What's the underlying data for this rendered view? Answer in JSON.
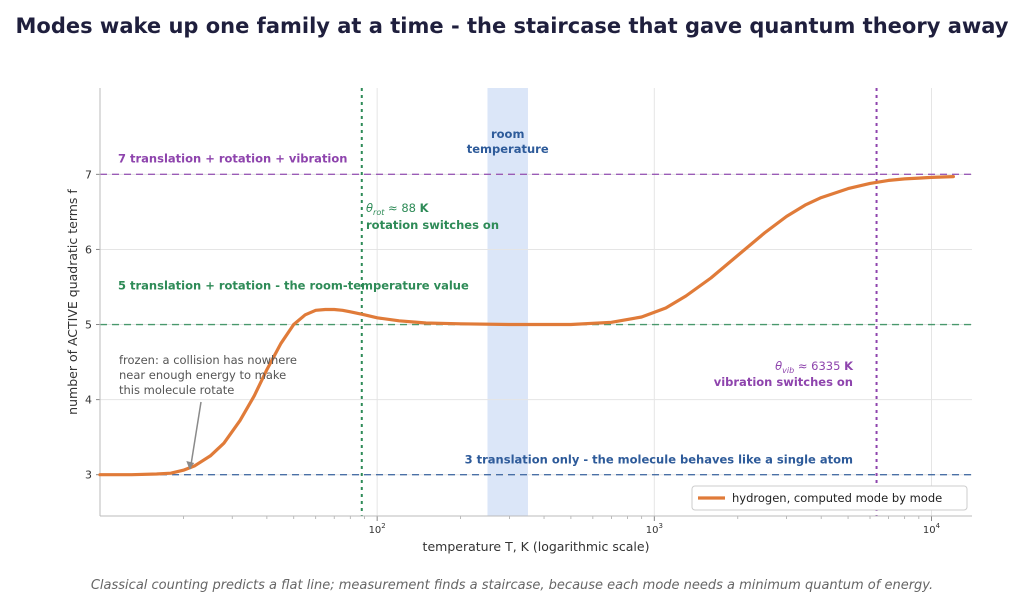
{
  "title": "Modes wake up one family at a time - the staircase that gave quantum theory away",
  "caption": "Classical counting predicts a flat line; measurement finds a staircase, because each mode needs a minimum quantum of energy.",
  "colors": {
    "curve": "#e07b39",
    "green": "#2e8b57",
    "purple": "#8e44ad",
    "blue": "#2e5b9a",
    "band": "#dbe6f8",
    "grid": "#e5e5e5",
    "text": "#333333",
    "note": "#555555"
  },
  "chart_data": {
    "type": "line",
    "xscale": "log",
    "xlim": [
      10,
      14000
    ],
    "ylim": [
      2.45,
      8.15
    ],
    "xlabel": "temperature T, K   (logarithmic scale)",
    "ylabel": "number of ACTIVE quadratic terms  f",
    "xticks": [
      {
        "value": 100,
        "base": "10",
        "exp": "2"
      },
      {
        "value": 1000,
        "base": "10",
        "exp": "3"
      },
      {
        "value": 10000,
        "base": "10",
        "exp": "4"
      }
    ],
    "yticks": [
      3,
      4,
      5,
      6,
      7
    ],
    "series": [
      {
        "name": "hydrogen, computed mode by mode",
        "x": [
          10,
          13,
          16,
          18,
          20,
          22,
          25,
          28,
          32,
          36,
          40,
          45,
          50,
          55,
          60,
          65,
          70,
          75,
          80,
          90,
          100,
          120,
          150,
          200,
          300,
          400,
          500,
          700,
          900,
          1100,
          1300,
          1600,
          2000,
          2500,
          3000,
          3500,
          4000,
          5000,
          6000,
          7000,
          8000,
          9000,
          10000,
          12000
        ],
        "y": [
          3.0,
          3.0,
          3.01,
          3.02,
          3.06,
          3.12,
          3.25,
          3.42,
          3.72,
          4.05,
          4.4,
          4.75,
          5.0,
          5.13,
          5.19,
          5.2,
          5.2,
          5.19,
          5.17,
          5.13,
          5.09,
          5.05,
          5.02,
          5.01,
          5.0,
          5.0,
          5.0,
          5.03,
          5.1,
          5.22,
          5.38,
          5.62,
          5.92,
          6.22,
          6.44,
          6.59,
          6.69,
          6.81,
          6.88,
          6.92,
          6.94,
          6.95,
          6.96,
          6.97
        ]
      }
    ],
    "hlines": [
      {
        "y": 7,
        "color": "#8e44ad",
        "label": "7   translation + rotation + vibration"
      },
      {
        "y": 5,
        "color": "#2e8b57",
        "label": "5   translation + rotation - the room-temperature value"
      },
      {
        "y": 3,
        "color": "#2e5b9a",
        "label": "3   translation only - the molecule behaves like a single atom"
      }
    ],
    "vlines": [
      {
        "x": 88,
        "color": "#2e8b57",
        "symbol": "θ",
        "subscript": "rot",
        "value": "≈ 88",
        "unit": "K",
        "label": "rotation switches on"
      },
      {
        "x": 6335,
        "color": "#8e44ad",
        "symbol": "θ",
        "subscript": "vib",
        "value": "≈ 6335",
        "unit": "K",
        "label": "vibration switches on"
      }
    ],
    "band": {
      "x": [
        250,
        350
      ],
      "label": [
        "room",
        "temperature"
      ]
    },
    "annotation": {
      "text": [
        "frozen: a collision has nowhere",
        "near enough energy to make",
        "this molecule rotate"
      ],
      "point": {
        "x": 21,
        "y": 3.05
      }
    },
    "legend": {
      "position": "lower right",
      "entry": "hydrogen, computed mode by mode"
    },
    "grid": true
  }
}
